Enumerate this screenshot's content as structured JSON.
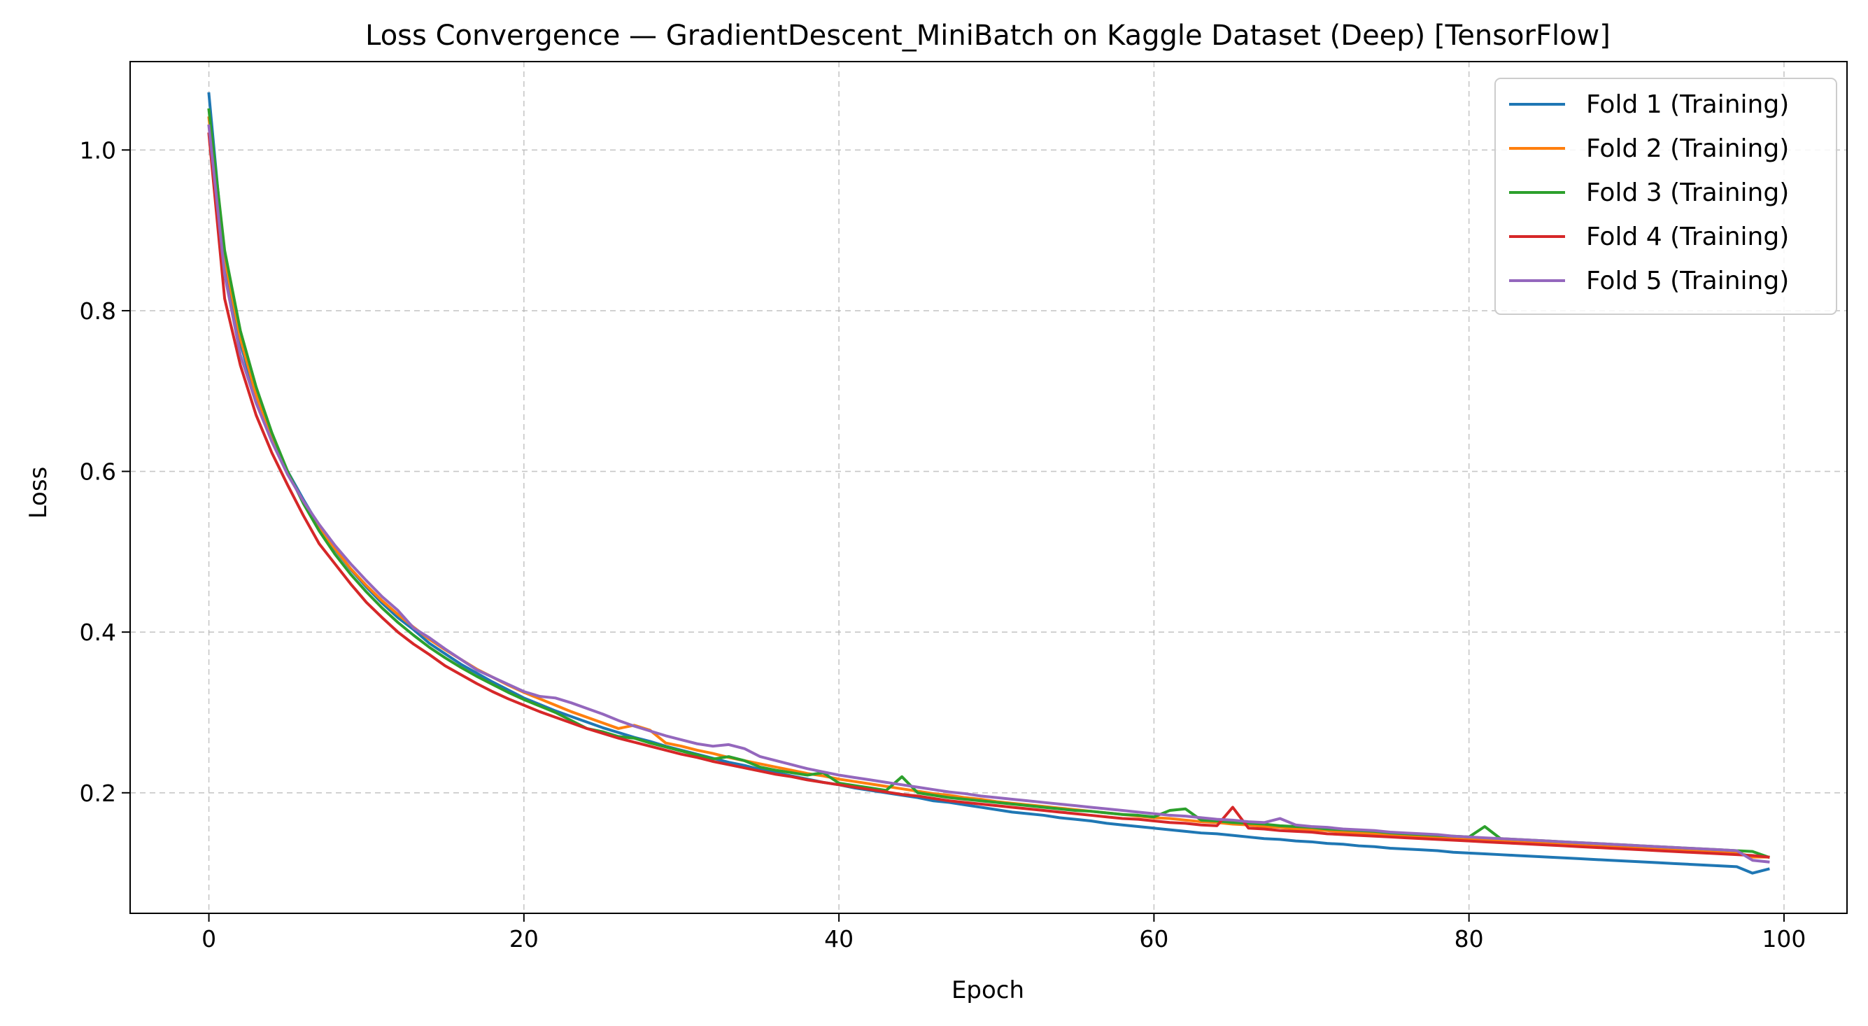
{
  "chart_data": {
    "type": "line",
    "title": "Loss Convergence — GradientDescent_MiniBatch on Kaggle Dataset (Deep) [TensorFlow]",
    "xlabel": "Epoch",
    "ylabel": "Loss",
    "xlim": [
      -5,
      104
    ],
    "ylim": [
      0.05,
      1.11
    ],
    "xticks": [
      0,
      20,
      40,
      60,
      80,
      100
    ],
    "yticks": [
      0.2,
      0.4,
      0.6,
      0.8,
      1.0
    ],
    "xtick_labels": [
      "0",
      "20",
      "40",
      "60",
      "80",
      "100"
    ],
    "ytick_labels": [
      "0.2",
      "0.4",
      "0.6",
      "0.8",
      "1.0"
    ],
    "grid": true,
    "grid_style": "dashed",
    "legend_position": "top-right",
    "series": [
      {
        "name": "Fold 1 (Training)",
        "color": "#1f77b4",
        "y": [
          1.07,
          0.86,
          0.76,
          0.69,
          0.64,
          0.6,
          0.565,
          0.532,
          0.503,
          0.478,
          0.456,
          0.436,
          0.418,
          0.403,
          0.386,
          0.373,
          0.36,
          0.349,
          0.338,
          0.328,
          0.318,
          0.31,
          0.302,
          0.295,
          0.288,
          0.281,
          0.275,
          0.269,
          0.264,
          0.258,
          0.253,
          0.248,
          0.243,
          0.238,
          0.234,
          0.229,
          0.225,
          0.221,
          0.217,
          0.213,
          0.21,
          0.206,
          0.203,
          0.2,
          0.197,
          0.194,
          0.19,
          0.188,
          0.185,
          0.182,
          0.179,
          0.176,
          0.174,
          0.172,
          0.169,
          0.167,
          0.165,
          0.162,
          0.16,
          0.158,
          0.156,
          0.154,
          0.152,
          0.15,
          0.149,
          0.147,
          0.145,
          0.143,
          0.142,
          0.14,
          0.139,
          0.137,
          0.136,
          0.134,
          0.133,
          0.131,
          0.13,
          0.129,
          0.128,
          0.126,
          0.125,
          0.124,
          0.123,
          0.122,
          0.121,
          0.12,
          0.119,
          0.118,
          0.117,
          0.116,
          0.115,
          0.114,
          0.113,
          0.112,
          0.111,
          0.11,
          0.109,
          0.108,
          0.1,
          0.105
        ]
      },
      {
        "name": "Fold 2 (Training)",
        "color": "#ff7f0e",
        "y": [
          1.04,
          0.865,
          0.765,
          0.695,
          0.643,
          0.598,
          0.562,
          0.53,
          0.504,
          0.479,
          0.458,
          0.439,
          0.422,
          0.406,
          0.391,
          0.378,
          0.366,
          0.354,
          0.344,
          0.334,
          0.325,
          0.317,
          0.309,
          0.301,
          0.294,
          0.287,
          0.28,
          0.284,
          0.278,
          0.262,
          0.258,
          0.253,
          0.249,
          0.244,
          0.24,
          0.236,
          0.232,
          0.228,
          0.224,
          0.221,
          0.217,
          0.214,
          0.211,
          0.208,
          0.205,
          0.202,
          0.199,
          0.197,
          0.194,
          0.192,
          0.189,
          0.187,
          0.185,
          0.183,
          0.181,
          0.179,
          0.177,
          0.175,
          0.173,
          0.171,
          0.169,
          0.168,
          0.166,
          0.164,
          0.163,
          0.161,
          0.16,
          0.158,
          0.157,
          0.155,
          0.154,
          0.153,
          0.151,
          0.15,
          0.149,
          0.148,
          0.146,
          0.145,
          0.144,
          0.143,
          0.142,
          0.141,
          0.14,
          0.139,
          0.138,
          0.137,
          0.136,
          0.135,
          0.134,
          0.133,
          0.132,
          0.131,
          0.13,
          0.129,
          0.128,
          0.128,
          0.127,
          0.126,
          0.12,
          0.12
        ]
      },
      {
        "name": "Fold 3 (Training)",
        "color": "#2ca02c",
        "y": [
          1.05,
          0.875,
          0.775,
          0.705,
          0.648,
          0.6,
          0.56,
          0.526,
          0.497,
          0.472,
          0.45,
          0.43,
          0.412,
          0.396,
          0.381,
          0.368,
          0.356,
          0.345,
          0.335,
          0.325,
          0.316,
          0.308,
          0.3,
          0.29,
          0.28,
          0.276,
          0.27,
          0.268,
          0.262,
          0.257,
          0.252,
          0.247,
          0.242,
          0.245,
          0.24,
          0.232,
          0.228,
          0.225,
          0.222,
          0.225,
          0.212,
          0.209,
          0.206,
          0.203,
          0.22,
          0.2,
          0.197,
          0.194,
          0.192,
          0.19,
          0.188,
          0.186,
          0.184,
          0.182,
          0.18,
          0.178,
          0.177,
          0.175,
          0.173,
          0.172,
          0.17,
          0.178,
          0.18,
          0.166,
          0.165,
          0.163,
          0.162,
          0.161,
          0.159,
          0.158,
          0.157,
          0.155,
          0.154,
          0.153,
          0.152,
          0.15,
          0.149,
          0.148,
          0.147,
          0.146,
          0.145,
          0.158,
          0.143,
          0.142,
          0.141,
          0.14,
          0.139,
          0.138,
          0.137,
          0.136,
          0.135,
          0.134,
          0.133,
          0.132,
          0.131,
          0.13,
          0.129,
          0.128,
          0.127,
          0.12
        ]
      },
      {
        "name": "Fold 4 (Training)",
        "color": "#d62728",
        "y": [
          1.02,
          0.815,
          0.732,
          0.67,
          0.623,
          0.583,
          0.545,
          0.51,
          0.485,
          0.46,
          0.437,
          0.418,
          0.4,
          0.385,
          0.372,
          0.358,
          0.347,
          0.336,
          0.326,
          0.317,
          0.309,
          0.301,
          0.294,
          0.287,
          0.28,
          0.274,
          0.268,
          0.263,
          0.258,
          0.253,
          0.248,
          0.244,
          0.239,
          0.235,
          0.231,
          0.227,
          0.223,
          0.22,
          0.216,
          0.213,
          0.21,
          0.207,
          0.204,
          0.201,
          0.198,
          0.196,
          0.193,
          0.19,
          0.188,
          0.186,
          0.184,
          0.182,
          0.18,
          0.178,
          0.176,
          0.174,
          0.172,
          0.17,
          0.168,
          0.167,
          0.165,
          0.163,
          0.162,
          0.16,
          0.159,
          0.182,
          0.156,
          0.155,
          0.153,
          0.152,
          0.151,
          0.149,
          0.148,
          0.147,
          0.146,
          0.145,
          0.144,
          0.143,
          0.142,
          0.141,
          0.14,
          0.139,
          0.138,
          0.137,
          0.136,
          0.135,
          0.134,
          0.133,
          0.132,
          0.131,
          0.13,
          0.129,
          0.128,
          0.127,
          0.126,
          0.125,
          0.124,
          0.123,
          0.122,
          0.12
        ]
      },
      {
        "name": "Fold 5 (Training)",
        "color": "#9467bd",
        "y": [
          1.03,
          0.845,
          0.745,
          0.685,
          0.637,
          0.596,
          0.563,
          0.534,
          0.508,
          0.485,
          0.464,
          0.444,
          0.427,
          0.405,
          0.393,
          0.379,
          0.366,
          0.353,
          0.344,
          0.335,
          0.326,
          0.32,
          0.318,
          0.312,
          0.305,
          0.298,
          0.29,
          0.283,
          0.277,
          0.271,
          0.266,
          0.261,
          0.258,
          0.26,
          0.255,
          0.245,
          0.24,
          0.235,
          0.23,
          0.226,
          0.222,
          0.219,
          0.216,
          0.213,
          0.21,
          0.207,
          0.204,
          0.201,
          0.199,
          0.196,
          0.194,
          0.192,
          0.19,
          0.188,
          0.186,
          0.184,
          0.182,
          0.18,
          0.178,
          0.176,
          0.174,
          0.172,
          0.171,
          0.169,
          0.167,
          0.166,
          0.164,
          0.163,
          0.168,
          0.16,
          0.158,
          0.157,
          0.155,
          0.154,
          0.153,
          0.151,
          0.15,
          0.149,
          0.148,
          0.146,
          0.145,
          0.144,
          0.143,
          0.142,
          0.141,
          0.14,
          0.139,
          0.138,
          0.137,
          0.136,
          0.135,
          0.134,
          0.133,
          0.132,
          0.131,
          0.13,
          0.129,
          0.128,
          0.116,
          0.114
        ]
      }
    ]
  }
}
